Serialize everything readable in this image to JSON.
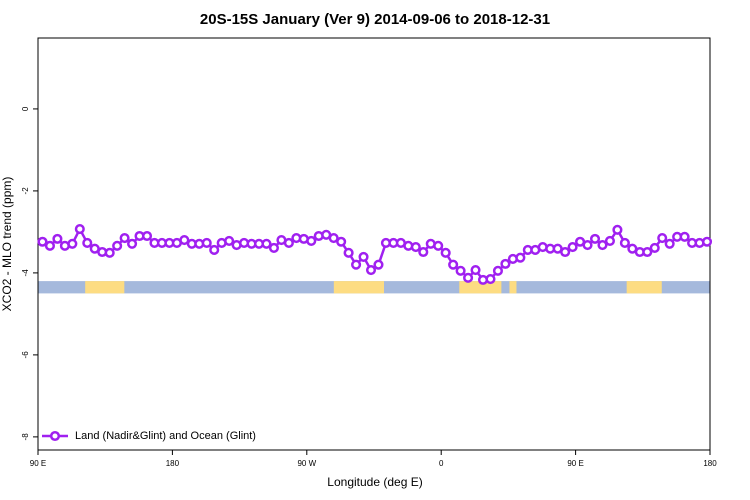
{
  "chart_data": {
    "type": "line",
    "title": "20S-15S January (Ver 9)   2014-09-06 to 2018-12-31",
    "x_label": "Longitude (deg E)",
    "y_label": "XCO2 - MLO trend (ppm)",
    "x": [
      93,
      98,
      103,
      108,
      113,
      118,
      123,
      128,
      133,
      138,
      143,
      148,
      153,
      158,
      163,
      168,
      173,
      178,
      183,
      188,
      193,
      198,
      203,
      208,
      213,
      218,
      223,
      228,
      233,
      238,
      243,
      248,
      253,
      258,
      263,
      268,
      273,
      278,
      283,
      288,
      293,
      298,
      303,
      308,
      313,
      318,
      323,
      328,
      333,
      338,
      343,
      348,
      353,
      358,
      363,
      368,
      373,
      378,
      383,
      388,
      393,
      398,
      403,
      408,
      413,
      418,
      423,
      428,
      433,
      438,
      443,
      448,
      453,
      458,
      463,
      468,
      473,
      478,
      483,
      488,
      493,
      498,
      503,
      508,
      513,
      518,
      523,
      528,
      533,
      538
    ],
    "series": [
      {
        "name": "Land (Nadir&Glint) and Ocean (Glint)",
        "color": "#a020f0",
        "values": [
          -3.24,
          -3.34,
          -3.17,
          -3.34,
          -3.29,
          -2.93,
          -3.27,
          -3.41,
          -3.49,
          -3.51,
          -3.34,
          -3.15,
          -3.29,
          -3.1,
          -3.1,
          -3.27,
          -3.27,
          -3.27,
          -3.27,
          -3.2,
          -3.29,
          -3.29,
          -3.27,
          -3.44,
          -3.27,
          -3.22,
          -3.32,
          -3.27,
          -3.29,
          -3.29,
          -3.29,
          -3.39,
          -3.2,
          -3.27,
          -3.15,
          -3.17,
          -3.22,
          -3.1,
          -3.07,
          -3.15,
          -3.24,
          -3.51,
          -3.8,
          -3.61,
          -3.93,
          -3.8,
          -3.27,
          -3.27,
          -3.27,
          -3.34,
          -3.37,
          -3.49,
          -3.29,
          -3.34,
          -3.51,
          -3.8,
          -3.95,
          -4.12,
          -3.93,
          -4.17,
          -4.15,
          -3.95,
          -3.78,
          -3.66,
          -3.63,
          -3.44,
          -3.44,
          -3.37,
          -3.41,
          -3.41,
          -3.49,
          -3.37,
          -3.24,
          -3.32,
          -3.17,
          -3.32,
          -3.22,
          -2.95,
          -3.27,
          -3.41,
          -3.49,
          -3.49,
          -3.39,
          -3.15,
          -3.29,
          -3.12,
          -3.12,
          -3.27,
          -3.27,
          -3.24
        ]
      }
    ],
    "surface_band": {
      "ylim": [
        -4.5,
        -4.2
      ],
      "ocean_color": "#a5b9dc",
      "land_color": "#fddc82",
      "land_segments": [
        [
          121.6,
          147.8
        ],
        [
          288.1,
          321.7
        ],
        [
          372.1,
          400.3
        ],
        [
          405.7,
          410.4
        ],
        [
          484.2,
          507.7
        ]
      ]
    },
    "xlim": [
      90,
      540
    ],
    "xticks": [
      {
        "value": 90,
        "label": "90 E"
      },
      180,
      {
        "value": 270,
        "label": "90 W"
      },
      {
        "value": 360,
        "label": "0"
      },
      {
        "value": 450,
        "label": "90 E"
      },
      {
        "value": 540,
        "label": "180"
      }
    ],
    "ylim": [
      -8.32,
      1.73
    ],
    "yticks": [
      0,
      -2,
      -4,
      -6,
      -8
    ],
    "legend": "bottom-left"
  }
}
